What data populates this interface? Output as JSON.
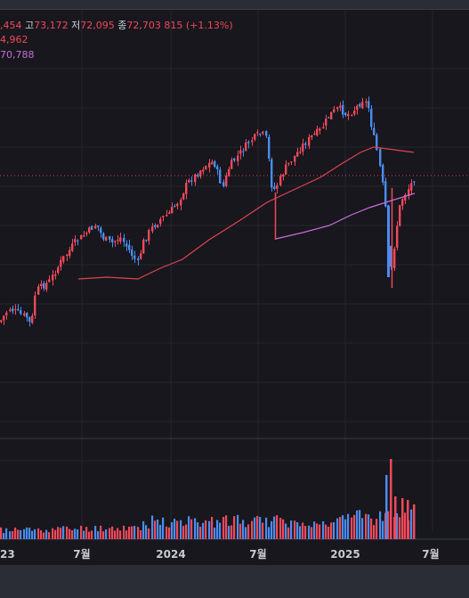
{
  "ohlc": {
    "open_value": ",454",
    "high_label": "고",
    "high_value": "73,172",
    "low_label": "저",
    "low_value": "72,095",
    "close_label": "종",
    "close_value": "72,703",
    "change": "815 (+1.13%)"
  },
  "ma_values": {
    "ma1": "4,962",
    "ma2": "70,788"
  },
  "colors": {
    "up": "#f0495a",
    "down": "#4a8df0",
    "ma_red": "#e0444f",
    "ma_violet": "#c86bd9",
    "background": "#17171d"
  },
  "chart_data": {
    "type": "candlestick",
    "x_ticks": [
      "23",
      "7월",
      "2024",
      "7월",
      "2025",
      "7월"
    ],
    "last_price_line": 72703,
    "moving_averages": [
      {
        "value_shown": "4,962"
      },
      {
        "value_shown": "70,788"
      }
    ],
    "volume_shown": true
  }
}
